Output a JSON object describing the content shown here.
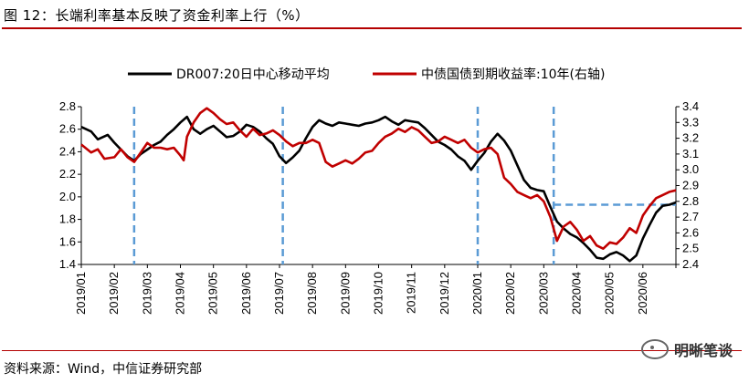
{
  "figure": {
    "title": "图 12：长端利率基本反映了资金利率上行（%）",
    "source": "资料来源：Wind，中信证券研究部",
    "brand": "明晰笔谈"
  },
  "colors": {
    "dr007": "#000000",
    "bond": "#c00000",
    "dashed": "#5b9bd5",
    "rule": "#b40000"
  },
  "chart_data": {
    "type": "line",
    "x_ticks": [
      "2019/01",
      "2019/02",
      "2019/03",
      "2019/04",
      "2019/05",
      "2019/06",
      "2019/07",
      "2019/08",
      "2019/09",
      "2019/10",
      "2019/11",
      "2019/12",
      "2020/01",
      "2020/02",
      "2020/03",
      "2020/04",
      "2020/05",
      "2020/06"
    ],
    "x_range": [
      0,
      18
    ],
    "y_left": {
      "range": [
        1.4,
        2.8
      ],
      "ticks": [
        "2.8",
        "2.6",
        "2.4",
        "2.2",
        "2.0",
        "1.8",
        "1.6",
        "1.4"
      ]
    },
    "y_right": {
      "range": [
        2.4,
        3.4
      ],
      "ticks": [
        "3.4",
        "3.3",
        "3.2",
        "3.1",
        "3.0",
        "2.9",
        "2.8",
        "2.7",
        "2.6",
        "2.5",
        "2.4"
      ]
    },
    "series": [
      {
        "name": "DR007:20日中心移动平均",
        "axis": "left",
        "points": [
          [
            0,
            2.62
          ],
          [
            0.3,
            2.58
          ],
          [
            0.5,
            2.51
          ],
          [
            0.8,
            2.55
          ],
          [
            1.0,
            2.48
          ],
          [
            1.2,
            2.42
          ],
          [
            1.4,
            2.36
          ],
          [
            1.6,
            2.32
          ],
          [
            1.8,
            2.38
          ],
          [
            2.0,
            2.42
          ],
          [
            2.2,
            2.46
          ],
          [
            2.4,
            2.49
          ],
          [
            2.6,
            2.55
          ],
          [
            2.8,
            2.6
          ],
          [
            3.0,
            2.66
          ],
          [
            3.2,
            2.71
          ],
          [
            3.4,
            2.6
          ],
          [
            3.6,
            2.56
          ],
          [
            3.8,
            2.6
          ],
          [
            4.0,
            2.63
          ],
          [
            4.2,
            2.58
          ],
          [
            4.4,
            2.53
          ],
          [
            4.6,
            2.54
          ],
          [
            4.8,
            2.58
          ],
          [
            5.0,
            2.64
          ],
          [
            5.2,
            2.62
          ],
          [
            5.4,
            2.58
          ],
          [
            5.6,
            2.52
          ],
          [
            5.8,
            2.47
          ],
          [
            6.0,
            2.36
          ],
          [
            6.2,
            2.3
          ],
          [
            6.4,
            2.35
          ],
          [
            6.6,
            2.41
          ],
          [
            6.8,
            2.52
          ],
          [
            7.0,
            2.62
          ],
          [
            7.2,
            2.68
          ],
          [
            7.4,
            2.65
          ],
          [
            7.6,
            2.63
          ],
          [
            7.8,
            2.66
          ],
          [
            8.0,
            2.65
          ],
          [
            8.2,
            2.64
          ],
          [
            8.4,
            2.63
          ],
          [
            8.6,
            2.65
          ],
          [
            8.8,
            2.66
          ],
          [
            9.0,
            2.68
          ],
          [
            9.2,
            2.71
          ],
          [
            9.4,
            2.67
          ],
          [
            9.6,
            2.64
          ],
          [
            9.8,
            2.68
          ],
          [
            10.0,
            2.67
          ],
          [
            10.2,
            2.66
          ],
          [
            10.4,
            2.61
          ],
          [
            10.6,
            2.55
          ],
          [
            10.8,
            2.49
          ],
          [
            11.0,
            2.46
          ],
          [
            11.2,
            2.42
          ],
          [
            11.4,
            2.36
          ],
          [
            11.6,
            2.32
          ],
          [
            11.8,
            2.24
          ],
          [
            12.0,
            2.32
          ],
          [
            12.2,
            2.39
          ],
          [
            12.4,
            2.49
          ],
          [
            12.6,
            2.56
          ],
          [
            12.8,
            2.5
          ],
          [
            13.0,
            2.41
          ],
          [
            13.2,
            2.28
          ],
          [
            13.4,
            2.15
          ],
          [
            13.6,
            2.08
          ],
          [
            13.8,
            2.06
          ],
          [
            14.0,
            2.05
          ],
          [
            14.2,
            1.91
          ],
          [
            14.4,
            1.78
          ],
          [
            14.6,
            1.72
          ],
          [
            14.8,
            1.67
          ],
          [
            15.0,
            1.64
          ],
          [
            15.2,
            1.59
          ],
          [
            15.4,
            1.53
          ],
          [
            15.6,
            1.46
          ],
          [
            15.8,
            1.45
          ],
          [
            16.0,
            1.49
          ],
          [
            16.2,
            1.51
          ],
          [
            16.4,
            1.48
          ],
          [
            16.6,
            1.43
          ],
          [
            16.8,
            1.48
          ],
          [
            17.0,
            1.63
          ],
          [
            17.2,
            1.75
          ],
          [
            17.4,
            1.86
          ],
          [
            17.6,
            1.92
          ],
          [
            17.8,
            1.93
          ],
          [
            18.0,
            1.95
          ]
        ]
      },
      {
        "name": "中债国债到期收益率:10年(右轴)",
        "axis": "right",
        "points": [
          [
            0,
            3.16
          ],
          [
            0.3,
            3.11
          ],
          [
            0.5,
            3.13
          ],
          [
            0.7,
            3.07
          ],
          [
            1.0,
            3.08
          ],
          [
            1.2,
            3.13
          ],
          [
            1.4,
            3.08
          ],
          [
            1.6,
            3.05
          ],
          [
            1.8,
            3.11
          ],
          [
            2.0,
            3.17
          ],
          [
            2.2,
            3.14
          ],
          [
            2.4,
            3.14
          ],
          [
            2.6,
            3.13
          ],
          [
            2.8,
            3.14
          ],
          [
            3.0,
            3.09
          ],
          [
            3.1,
            3.06
          ],
          [
            3.2,
            3.21
          ],
          [
            3.4,
            3.3
          ],
          [
            3.6,
            3.36
          ],
          [
            3.8,
            3.39
          ],
          [
            4.0,
            3.36
          ],
          [
            4.2,
            3.32
          ],
          [
            4.4,
            3.29
          ],
          [
            4.6,
            3.3
          ],
          [
            4.8,
            3.25
          ],
          [
            5.0,
            3.21
          ],
          [
            5.2,
            3.26
          ],
          [
            5.4,
            3.22
          ],
          [
            5.6,
            3.23
          ],
          [
            5.8,
            3.25
          ],
          [
            6.0,
            3.22
          ],
          [
            6.2,
            3.18
          ],
          [
            6.4,
            3.15
          ],
          [
            6.6,
            3.17
          ],
          [
            6.8,
            3.17
          ],
          [
            7.0,
            3.19
          ],
          [
            7.2,
            3.17
          ],
          [
            7.4,
            3.05
          ],
          [
            7.6,
            3.02
          ],
          [
            7.8,
            3.04
          ],
          [
            8.0,
            3.06
          ],
          [
            8.2,
            3.04
          ],
          [
            8.4,
            3.07
          ],
          [
            8.6,
            3.11
          ],
          [
            8.8,
            3.12
          ],
          [
            9.0,
            3.17
          ],
          [
            9.2,
            3.21
          ],
          [
            9.4,
            3.23
          ],
          [
            9.6,
            3.26
          ],
          [
            9.8,
            3.24
          ],
          [
            10.0,
            3.27
          ],
          [
            10.2,
            3.25
          ],
          [
            10.4,
            3.21
          ],
          [
            10.6,
            3.17
          ],
          [
            10.8,
            3.18
          ],
          [
            11.0,
            3.21
          ],
          [
            11.2,
            3.19
          ],
          [
            11.4,
            3.17
          ],
          [
            11.6,
            3.19
          ],
          [
            11.8,
            3.14
          ],
          [
            12.0,
            3.11
          ],
          [
            12.2,
            3.13
          ],
          [
            12.4,
            3.14
          ],
          [
            12.6,
            3.1
          ],
          [
            12.8,
            2.95
          ],
          [
            13.0,
            2.91
          ],
          [
            13.2,
            2.86
          ],
          [
            13.4,
            2.84
          ],
          [
            13.6,
            2.82
          ],
          [
            13.8,
            2.84
          ],
          [
            14.0,
            2.8
          ],
          [
            14.2,
            2.7
          ],
          [
            14.4,
            2.55
          ],
          [
            14.6,
            2.64
          ],
          [
            14.8,
            2.67
          ],
          [
            15.0,
            2.62
          ],
          [
            15.2,
            2.55
          ],
          [
            15.4,
            2.58
          ],
          [
            15.6,
            2.52
          ],
          [
            15.8,
            2.5
          ],
          [
            16.0,
            2.54
          ],
          [
            16.2,
            2.53
          ],
          [
            16.4,
            2.57
          ],
          [
            16.6,
            2.63
          ],
          [
            16.8,
            2.6
          ],
          [
            17.0,
            2.71
          ],
          [
            17.2,
            2.77
          ],
          [
            17.4,
            2.82
          ],
          [
            17.6,
            2.84
          ],
          [
            17.8,
            2.86
          ],
          [
            18.0,
            2.87
          ]
        ]
      }
    ],
    "dashed_vlines": [
      1.6,
      6.1,
      12.0,
      14.3
    ],
    "dashed_hline": {
      "x_from": 14.3,
      "x_to": 18.0,
      "value": 1.93,
      "axis": "left"
    }
  }
}
